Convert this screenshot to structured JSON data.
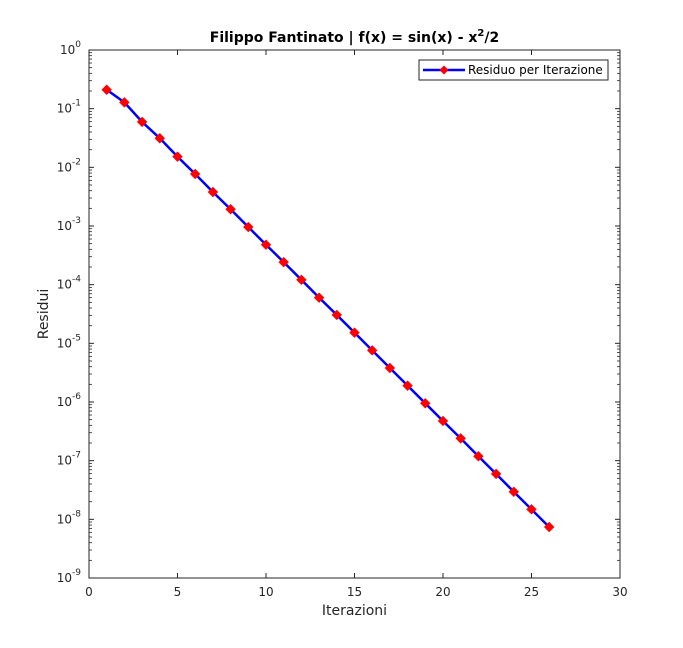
{
  "chart_data": {
    "type": "line",
    "title": "Filippo Fantinato | f(x) = sin(x) - x^2/2",
    "title_parts": {
      "main": "Filippo Fantinato | f(x) = sin(x) - x",
      "superscript": "2",
      "tail": "/2"
    },
    "xlabel": "Iterazioni",
    "ylabel": "Residui",
    "xlim": [
      0,
      30
    ],
    "ylim": [
      1e-09,
      1
    ],
    "yscale": "log",
    "grid": false,
    "legend_position": "top-right",
    "x_ticks": [
      0,
      5,
      10,
      15,
      20,
      25,
      30
    ],
    "x_tick_labels": [
      "0",
      "5",
      "10",
      "15",
      "20",
      "25",
      "30"
    ],
    "y_ticks": [
      {
        "value": 1,
        "base": "10",
        "exp": "0"
      },
      {
        "value": 0.1,
        "base": "10",
        "exp": "-1"
      },
      {
        "value": 0.01,
        "base": "10",
        "exp": "-2"
      },
      {
        "value": 0.001,
        "base": "10",
        "exp": "-3"
      },
      {
        "value": 0.0001,
        "base": "10",
        "exp": "-4"
      },
      {
        "value": 1e-05,
        "base": "10",
        "exp": "-5"
      },
      {
        "value": 1e-06,
        "base": "10",
        "exp": "-6"
      },
      {
        "value": 1e-07,
        "base": "10",
        "exp": "-7"
      },
      {
        "value": 1e-08,
        "base": "10",
        "exp": "-8"
      },
      {
        "value": 1e-09,
        "base": "10",
        "exp": "-9"
      }
    ],
    "series": [
      {
        "name": "Residuo per Iterazione",
        "line_color": "#0000ff",
        "marker_color": "#ff0000",
        "marker": "diamond",
        "x": [
          1,
          2,
          3,
          4,
          5,
          6,
          7,
          8,
          9,
          10,
          11,
          12,
          13,
          14,
          15,
          16,
          17,
          18,
          19,
          20,
          21,
          22,
          23,
          24,
          25,
          26
        ],
        "y": [
          0.21,
          0.128,
          0.0595,
          0.0313,
          0.0152,
          0.0077,
          0.0038,
          0.00193,
          0.00096,
          0.00048,
          0.000242,
          0.000121,
          6e-05,
          3.05e-05,
          1.52e-05,
          7.6e-06,
          3.8e-06,
          1.9e-06,
          9.5e-07,
          4.75e-07,
          2.4e-07,
          1.19e-07,
          5.95e-08,
          2.95e-08,
          1.48e-08,
          7.4e-09
        ]
      }
    ]
  }
}
